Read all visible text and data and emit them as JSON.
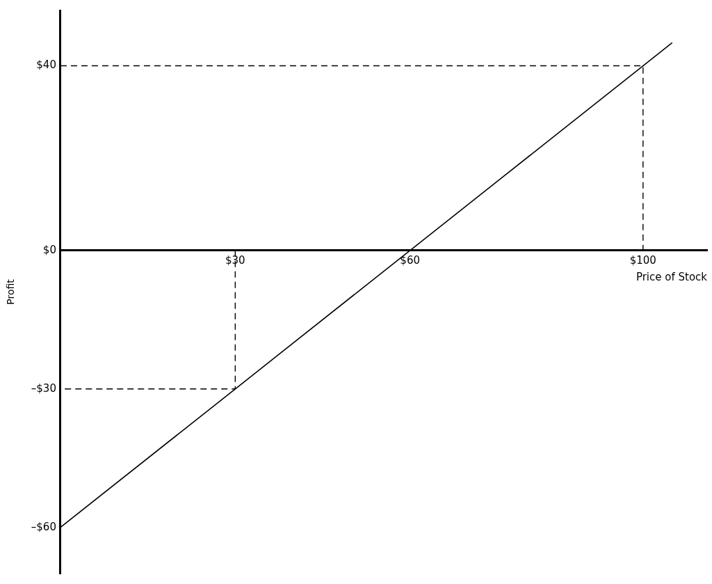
{
  "chart_data": {
    "type": "line",
    "xlabel": "Price of Stock",
    "ylabel": "Profit",
    "xlim": [
      0,
      111
    ],
    "ylim": [
      -70,
      52
    ],
    "xticks": [
      {
        "value": 30,
        "label": "$30"
      },
      {
        "value": 60,
        "label": "$60"
      },
      {
        "value": 100,
        "label": "$100"
      }
    ],
    "yticks": [
      {
        "value": -60,
        "label": "–$60"
      },
      {
        "value": -30,
        "label": "–$30"
      },
      {
        "value": 0,
        "label": "$0"
      },
      {
        "value": 40,
        "label": "$40"
      }
    ],
    "series": [
      {
        "color": "#000000",
        "x": [
          0,
          30,
          60,
          100,
          105
        ],
        "values": [
          -60,
          -30,
          0,
          40,
          45
        ],
        "line_style": "solid"
      },
      {
        "color": "#000000",
        "x": [
          0,
          100,
          100
        ],
        "values": [
          40,
          40,
          0
        ],
        "line_style": "dashed"
      },
      {
        "color": "#000000",
        "x": [
          30,
          30,
          0
        ],
        "values": [
          0,
          -30,
          -30
        ],
        "line_style": "dashed"
      }
    ],
    "legend": false
  }
}
